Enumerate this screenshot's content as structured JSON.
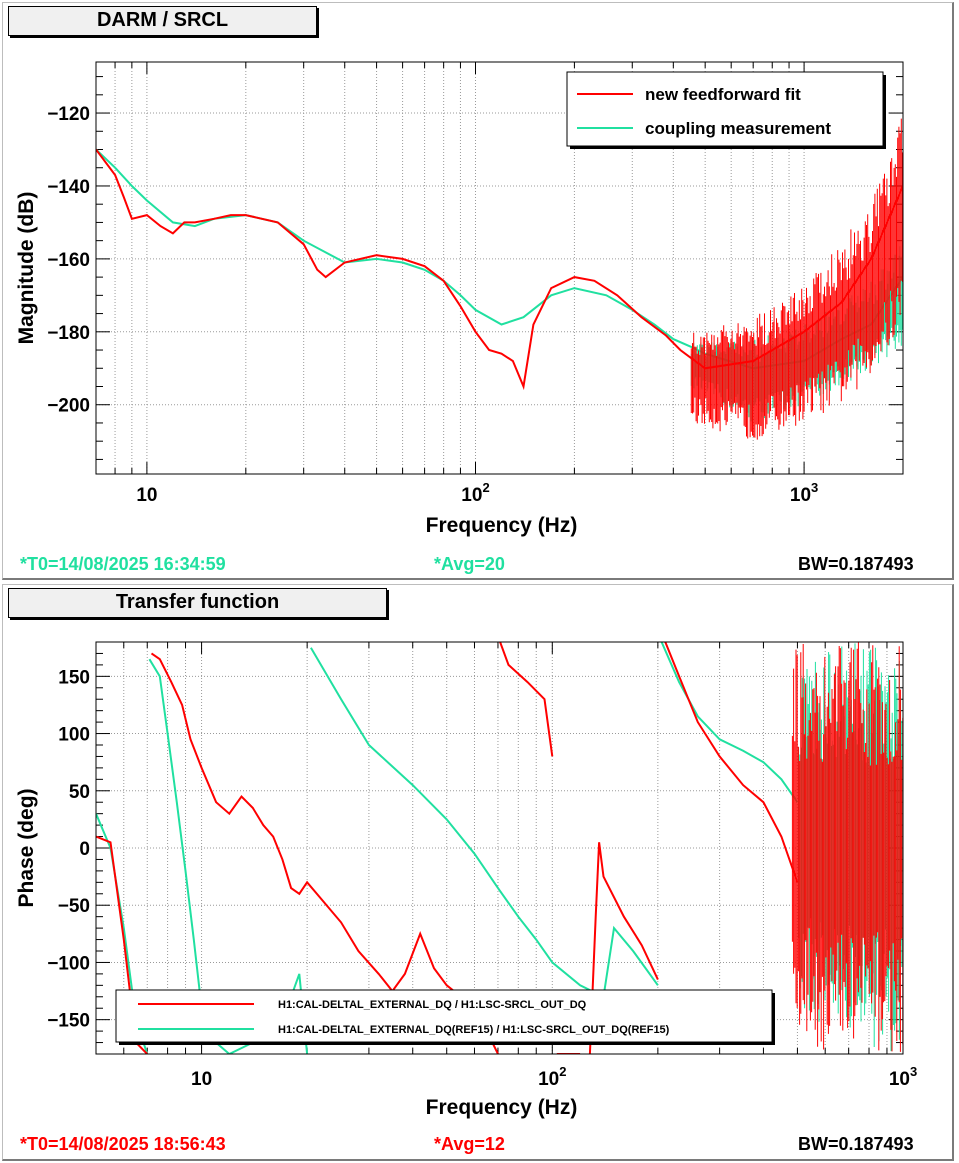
{
  "colors": {
    "red": "#ff0000",
    "teal": "#20e0a0",
    "axis": "#000000",
    "grid": "#9a9a9a"
  },
  "top_panel": {
    "title": "DARM / SRCL",
    "t0": "*T0=14/08/2025 16:34:59",
    "avg": "*Avg=20",
    "bw": "BW=0.187493"
  },
  "bottom_panel": {
    "title": "Transfer function",
    "t0": "*T0=14/08/2025 18:56:43",
    "avg": "*Avg=12",
    "bw": "BW=0.187493"
  },
  "chart_data": [
    {
      "type": "line",
      "xscale": "log",
      "xlabel": "Frequency (Hz)",
      "ylabel": "Magnitude (dB)",
      "xlim": [
        7,
        2000
      ],
      "ylim": [
        -219,
        -106
      ],
      "xticks": [
        {
          "v": 10,
          "base": "10",
          "exp": ""
        },
        {
          "v": 100,
          "base": "10",
          "exp": "2"
        },
        {
          "v": 1000,
          "base": "10",
          "exp": "3"
        }
      ],
      "yticks": [
        -120,
        -140,
        -160,
        -180,
        -200
      ],
      "grid": true,
      "legend_position": "top-right",
      "series": [
        {
          "name": "new feedforward fit",
          "color": "#ff0000",
          "points": [
            [
              7,
              -130
            ],
            [
              8,
              -137
            ],
            [
              8.5,
              -143
            ],
            [
              9,
              -149
            ],
            [
              10,
              -148
            ],
            [
              11,
              -151
            ],
            [
              12,
              -153
            ],
            [
              13,
              -150
            ],
            [
              14,
              -150
            ],
            [
              16,
              -149
            ],
            [
              18,
              -148
            ],
            [
              20,
              -148
            ],
            [
              25,
              -150
            ],
            [
              30,
              -156
            ],
            [
              33,
              -163
            ],
            [
              35,
              -165
            ],
            [
              40,
              -161
            ],
            [
              50,
              -159
            ],
            [
              60,
              -160
            ],
            [
              70,
              -162
            ],
            [
              80,
              -166
            ],
            [
              90,
              -173
            ],
            [
              100,
              -180
            ],
            [
              110,
              -185
            ],
            [
              120,
              -186
            ],
            [
              130,
              -188
            ],
            [
              140,
              -195
            ],
            [
              150,
              -178
            ],
            [
              170,
              -168
            ],
            [
              200,
              -165
            ],
            [
              230,
              -166
            ],
            [
              270,
              -170
            ],
            [
              320,
              -176
            ],
            [
              380,
              -181
            ],
            [
              420,
              -185
            ],
            [
              450,
              -187
            ],
            [
              500,
              -190
            ],
            [
              700,
              -188
            ],
            [
              1000,
              -180
            ],
            [
              1300,
              -172
            ],
            [
              1600,
              -160
            ],
            [
              2000,
              -140
            ]
          ],
          "envelope": [
            [
              450,
              -205,
              -180
            ],
            [
              700,
              -210,
              -176
            ],
            [
              1000,
              -205,
              -165
            ],
            [
              1300,
              -200,
              -155
            ],
            [
              1600,
              -192,
              -145
            ],
            [
              2000,
              -180,
              -120
            ]
          ]
        },
        {
          "name": "coupling measurement",
          "color": "#20e0a0",
          "points": [
            [
              7,
              -130
            ],
            [
              8,
              -135
            ],
            [
              9,
              -140
            ],
            [
              10,
              -144
            ],
            [
              12,
              -150
            ],
            [
              14,
              -151
            ],
            [
              16,
              -149
            ],
            [
              20,
              -148
            ],
            [
              25,
              -150
            ],
            [
              30,
              -155
            ],
            [
              40,
              -161
            ],
            [
              50,
              -160
            ],
            [
              60,
              -161
            ],
            [
              70,
              -163
            ],
            [
              80,
              -166
            ],
            [
              90,
              -170
            ],
            [
              100,
              -174
            ],
            [
              120,
              -178
            ],
            [
              140,
              -176
            ],
            [
              170,
              -170
            ],
            [
              200,
              -168
            ],
            [
              250,
              -170
            ],
            [
              300,
              -174
            ],
            [
              350,
              -178
            ],
            [
              400,
              -182
            ],
            [
              450,
              -184
            ],
            [
              500,
              -186
            ],
            [
              700,
              -190
            ],
            [
              1000,
              -188
            ],
            [
              1300,
              -182
            ],
            [
              1600,
              -178
            ],
            [
              2000,
              -165
            ]
          ],
          "envelope": [
            [
              450,
              -195,
              -183
            ],
            [
              700,
              -205,
              -182
            ],
            [
              1000,
              -200,
              -178
            ],
            [
              1300,
              -195,
              -172
            ],
            [
              1600,
              -190,
              -166
            ],
            [
              2000,
              -185,
              -155
            ]
          ]
        }
      ]
    },
    {
      "type": "line",
      "xscale": "log",
      "xlabel": "Frequency (Hz)",
      "ylabel": "Phase (deg)",
      "xlim": [
        5,
        1000
      ],
      "ylim": [
        -180,
        180
      ],
      "xticks": [
        {
          "v": 10,
          "base": "10",
          "exp": ""
        },
        {
          "v": 100,
          "base": "10",
          "exp": "2"
        },
        {
          "v": 1000,
          "base": "10",
          "exp": "3"
        }
      ],
      "yticks": [
        150,
        100,
        50,
        0,
        -50,
        -100,
        -150
      ],
      "grid": true,
      "legend_position": "bottom-center",
      "series": [
        {
          "name": "H1:CAL-DELTAL_EXTERNAL_DQ / H1:LSC-SRCL_OUT_DQ",
          "color": "#ff0000",
          "points": [
            [
              5,
              10
            ],
            [
              5.5,
              5
            ],
            [
              6,
              -80
            ],
            [
              6.5,
              -170
            ],
            [
              7,
              -180
            ],
            [
              7.2,
              170
            ],
            [
              7.6,
              165
            ],
            [
              8.2,
              145
            ],
            [
              8.8,
              125
            ],
            [
              9.3,
              95
            ],
            [
              10,
              70
            ],
            [
              11,
              40
            ],
            [
              12,
              30
            ],
            [
              13,
              45
            ],
            [
              14,
              35
            ],
            [
              15,
              20
            ],
            [
              16,
              10
            ],
            [
              17,
              -10
            ],
            [
              18,
              -35
            ],
            [
              19,
              -40
            ],
            [
              20,
              -30
            ],
            [
              22,
              -45
            ],
            [
              25,
              -65
            ],
            [
              28,
              -90
            ],
            [
              32,
              -110
            ],
            [
              35,
              -125
            ],
            [
              38,
              -110
            ],
            [
              42,
              -75
            ],
            [
              46,
              -105
            ],
            [
              50,
              -120
            ],
            [
              55,
              -130
            ],
            [
              60,
              -135
            ],
            [
              65,
              -160
            ],
            [
              70,
              -180
            ],
            [
              71,
              180
            ],
            [
              75,
              160
            ],
            [
              85,
              145
            ],
            [
              95,
              130
            ],
            [
              100,
              80
            ],
            [
              103,
              -180
            ],
            [
              110,
              -180
            ],
            [
              120,
              -180
            ],
            [
              125,
              180
            ],
            [
              128,
              -180
            ],
            [
              133,
              -60
            ],
            [
              136,
              5
            ],
            [
              140,
              -25
            ],
            [
              160,
              -60
            ],
            [
              180,
              -85
            ],
            [
              200,
              -115
            ],
            [
              210,
              180
            ],
            [
              230,
              150
            ],
            [
              260,
              110
            ],
            [
              300,
              80
            ],
            [
              350,
              55
            ],
            [
              400,
              40
            ],
            [
              450,
              10
            ],
            [
              500,
              -30
            ]
          ],
          "envelope": [
            [
              480,
              -170,
              180
            ],
            [
              600,
              -180,
              180
            ],
            [
              800,
              -180,
              180
            ],
            [
              1000,
              -180,
              180
            ]
          ]
        },
        {
          "name": "H1:CAL-DELTAL_EXTERNAL_DQ(REF15) / H1:LSC-SRCL_OUT_DQ(REF15)",
          "color": "#20e0a0",
          "points": [
            [
              5,
              30
            ],
            [
              5.5,
              0
            ],
            [
              6,
              -70
            ],
            [
              6.5,
              -150
            ],
            [
              7,
              -180
            ],
            [
              7.1,
              165
            ],
            [
              7.6,
              150
            ],
            [
              8,
              100
            ],
            [
              8.5,
              40
            ],
            [
              9,
              -20
            ],
            [
              9.5,
              -80
            ],
            [
              10,
              -140
            ],
            [
              11,
              -170
            ],
            [
              12,
              -180
            ],
            [
              14,
              -170
            ],
            [
              16,
              -150
            ],
            [
              18,
              -130
            ],
            [
              19,
              -110
            ],
            [
              20,
              -180
            ],
            [
              20.5,
              175
            ],
            [
              25,
              130
            ],
            [
              30,
              90
            ],
            [
              40,
              55
            ],
            [
              50,
              25
            ],
            [
              60,
              -5
            ],
            [
              70,
              -35
            ],
            [
              80,
              -60
            ],
            [
              90,
              -80
            ],
            [
              100,
              -100
            ],
            [
              120,
              -120
            ],
            [
              140,
              -130
            ],
            [
              150,
              -70
            ],
            [
              170,
              -90
            ],
            [
              200,
              -120
            ],
            [
              205,
              180
            ],
            [
              230,
              145
            ],
            [
              260,
              115
            ],
            [
              300,
              95
            ],
            [
              350,
              85
            ],
            [
              400,
              75
            ],
            [
              450,
              60
            ],
            [
              500,
              40
            ]
          ],
          "envelope": [
            [
              500,
              -140,
              160
            ],
            [
              700,
              -170,
              180
            ],
            [
              1000,
              -180,
              180
            ]
          ]
        }
      ]
    }
  ]
}
